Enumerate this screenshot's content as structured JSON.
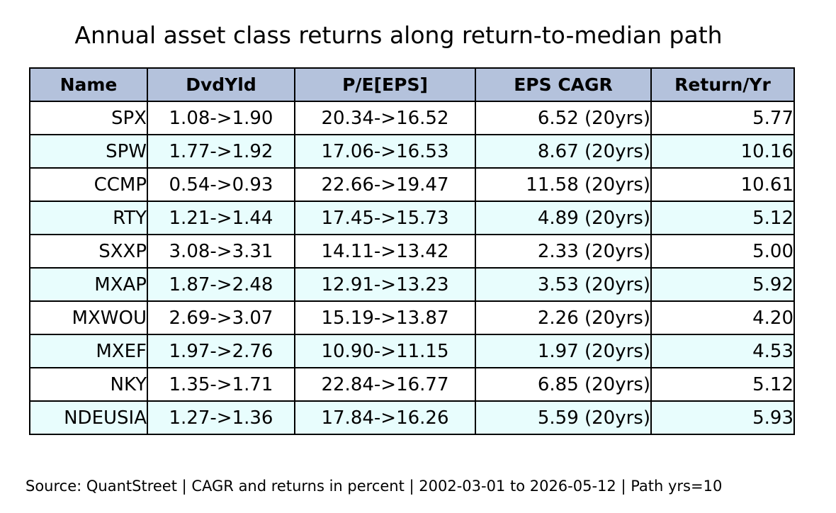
{
  "chart_data": {
    "type": "table",
    "title": "Annual asset class returns along return-to-median path",
    "columns": [
      "Name",
      "DvdYld",
      "P/E[EPS]",
      "EPS CAGR",
      "Return/Yr"
    ],
    "rows": [
      [
        "SPX",
        "1.08->1.90",
        "20.34->16.52",
        "6.52 (20yrs)",
        "5.77"
      ],
      [
        "SPW",
        "1.77->1.92",
        "17.06->16.53",
        "8.67 (20yrs)",
        "10.16"
      ],
      [
        "CCMP",
        "0.54->0.93",
        "22.66->19.47",
        "11.58 (20yrs)",
        "10.61"
      ],
      [
        "RTY",
        "1.21->1.44",
        "17.45->15.73",
        "4.89 (20yrs)",
        "5.12"
      ],
      [
        "SXXP",
        "3.08->3.31",
        "14.11->13.42",
        "2.33 (20yrs)",
        "5.00"
      ],
      [
        "MXAP",
        "1.87->2.48",
        "12.91->13.23",
        "3.53 (20yrs)",
        "5.92"
      ],
      [
        "MXWOU",
        "2.69->3.07",
        "15.19->13.87",
        "2.26 (20yrs)",
        "4.20"
      ],
      [
        "MXEF",
        "1.97->2.76",
        "10.90->11.15",
        "1.97 (20yrs)",
        "4.53"
      ],
      [
        "NKY",
        "1.35->1.71",
        "22.84->16.77",
        "6.85 (20yrs)",
        "5.12"
      ],
      [
        "NDEUSIA",
        "1.27->1.36",
        "17.84->16.26",
        "5.59 (20yrs)",
        "5.93"
      ]
    ],
    "source": "Source: QuantStreet | CAGR and returns in percent | 2002-03-01 to 2026-05-12 | Path yrs=10"
  },
  "colors": {
    "header_bg": "#b4c2dc",
    "row_even_bg": "#ffffff",
    "row_odd_bg": "#e8fdfd",
    "border": "#000000",
    "text": "#000000"
  }
}
